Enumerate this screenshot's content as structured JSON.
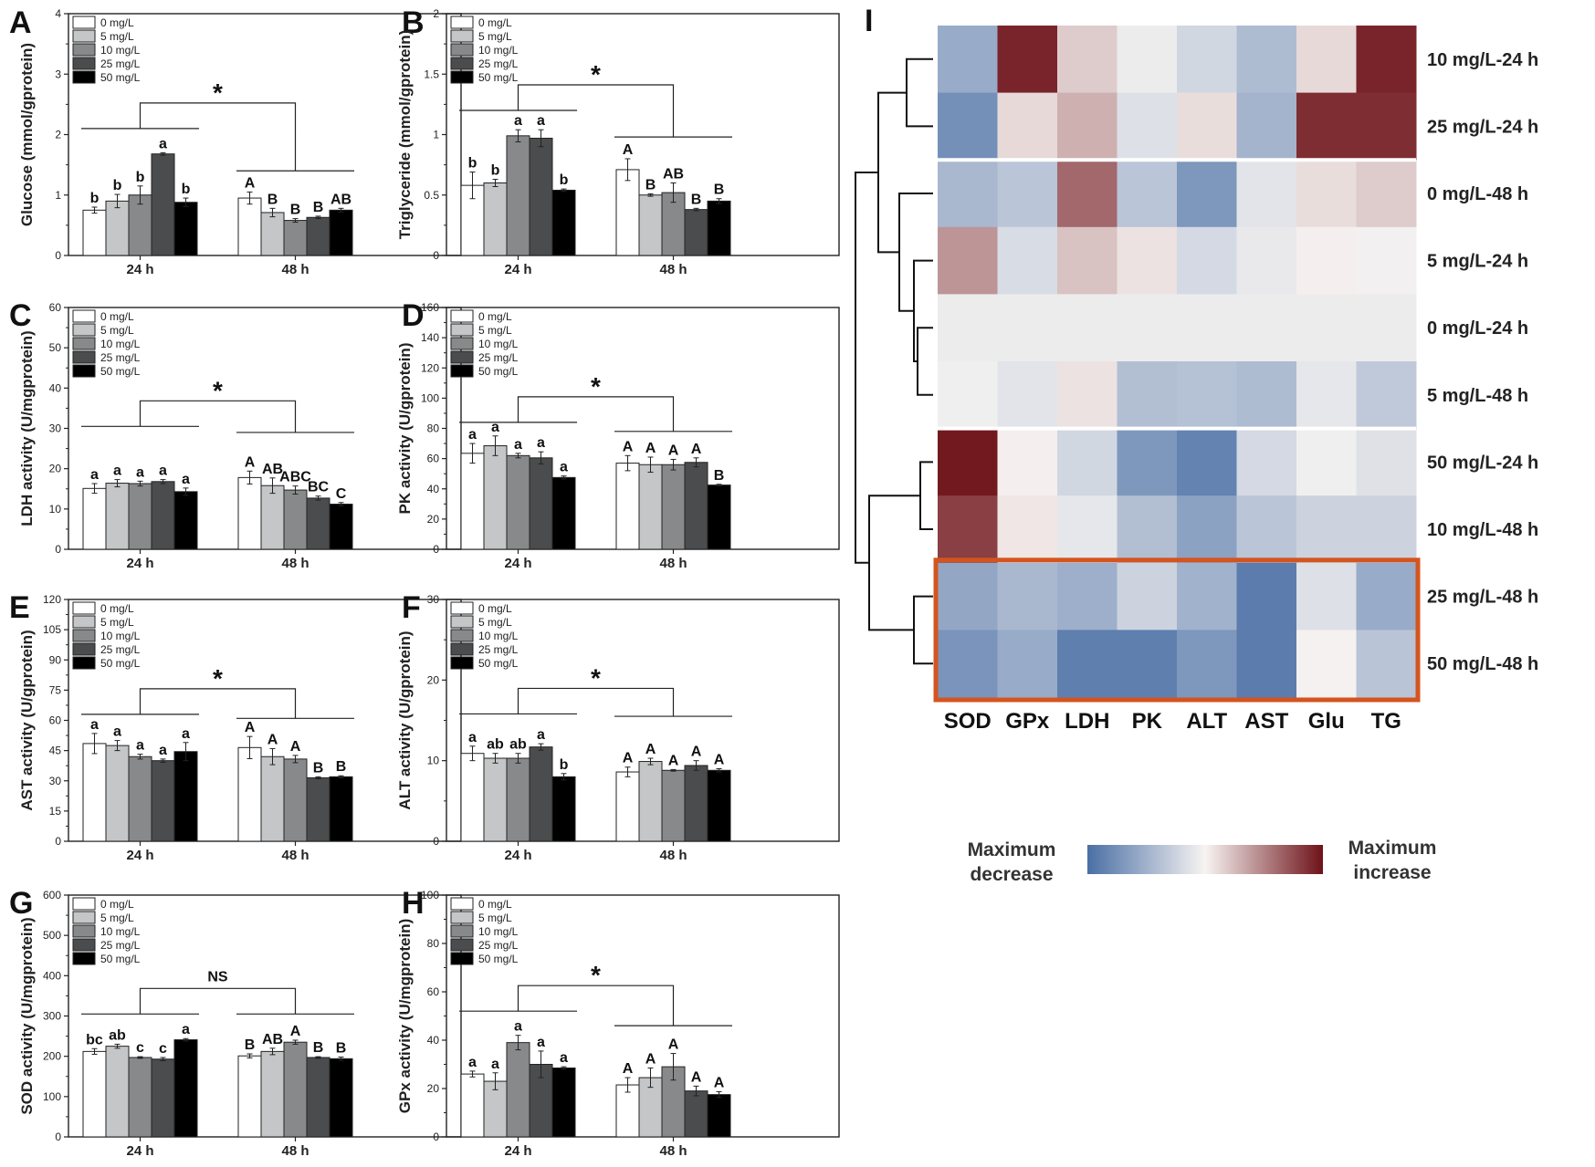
{
  "figure": {
    "legend_scale": {
      "low_label_line1": "Maximum",
      "low_label_line2": "decrease",
      "high_label_line1": "Maximum",
      "high_label_line2": "increase"
    },
    "colors": {
      "low": "#4a6fa5",
      "mid": "#f7f4f2",
      "high": "#6e1219",
      "highlight_box": "#d4541f"
    }
  },
  "chart_data": [
    {
      "panel": "A",
      "type": "bar",
      "ylabel": "Glucose (mmol/gprotein)",
      "ylim": [
        0,
        4
      ],
      "yticks": [
        0,
        1,
        2,
        3,
        4
      ],
      "groups": [
        "24 h",
        "48 h"
      ],
      "series": [
        {
          "name": "0 mg/L",
          "color": "#ffffff",
          "values": [
            0.75,
            0.95
          ],
          "errors": [
            0.05,
            0.1
          ],
          "letters": [
            "b",
            "A"
          ]
        },
        {
          "name": "5 mg/L",
          "color": "#c4c6c7",
          "values": [
            0.9,
            0.71
          ],
          "errors": [
            0.11,
            0.07
          ],
          "letters": [
            "b",
            "B"
          ]
        },
        {
          "name": "10 mg/L",
          "color": "#88898a",
          "values": [
            1.0,
            0.58
          ],
          "errors": [
            0.15,
            0.03
          ],
          "letters": [
            "b",
            "B"
          ]
        },
        {
          "name": "25 mg/L",
          "color": "#4b4c4d",
          "values": [
            1.68,
            0.63
          ],
          "errors": [
            0.02,
            0.02
          ],
          "letters": [
            "a",
            "B"
          ]
        },
        {
          "name": "50 mg/L",
          "color": "#000000",
          "values": [
            0.88,
            0.75
          ],
          "errors": [
            0.07,
            0.03
          ],
          "letters": [
            "b",
            "AB"
          ]
        }
      ],
      "significance": "*",
      "bracket_levels": [
        2.1,
        1.4
      ]
    },
    {
      "panel": "B",
      "type": "bar",
      "ylabel": "Triglyceride (mmol/gprotein)",
      "ylim": [
        0,
        2.0
      ],
      "yticks": [
        0.0,
        0.5,
        1.0,
        1.5,
        2.0
      ],
      "groups": [
        "24 h",
        "48 h"
      ],
      "series": [
        {
          "name": "0 mg/L",
          "color": "#ffffff",
          "values": [
            0.58,
            0.71
          ],
          "errors": [
            0.11,
            0.09
          ],
          "letters": [
            "b",
            "A"
          ]
        },
        {
          "name": "5 mg/L",
          "color": "#c4c6c7",
          "values": [
            0.6,
            0.5
          ],
          "errors": [
            0.03,
            0.01
          ],
          "letters": [
            "b",
            "B"
          ]
        },
        {
          "name": "10 mg/L",
          "color": "#88898a",
          "values": [
            0.99,
            0.52
          ],
          "errors": [
            0.05,
            0.08
          ],
          "letters": [
            "a",
            "AB"
          ]
        },
        {
          "name": "25 mg/L",
          "color": "#4b4c4d",
          "values": [
            0.97,
            0.38
          ],
          "errors": [
            0.07,
            0.01
          ],
          "letters": [
            "a",
            "B"
          ]
        },
        {
          "name": "50 mg/L",
          "color": "#000000",
          "values": [
            0.54,
            0.45
          ],
          "errors": [
            0.01,
            0.02
          ],
          "letters": [
            "b",
            "B"
          ]
        }
      ],
      "significance": "*",
      "bracket_levels": [
        1.2,
        0.98
      ]
    },
    {
      "panel": "C",
      "type": "bar",
      "ylabel": "LDH activity (U/mgprotein)",
      "ylim": [
        0,
        60
      ],
      "yticks": [
        0,
        10,
        20,
        30,
        40,
        50,
        60
      ],
      "groups": [
        "24 h",
        "48 h"
      ],
      "series": [
        {
          "name": "0 mg/L",
          "color": "#ffffff",
          "values": [
            15.1,
            17.8
          ],
          "errors": [
            1.2,
            1.6
          ],
          "letters": [
            "a",
            "A"
          ]
        },
        {
          "name": "5 mg/L",
          "color": "#c4c6c7",
          "values": [
            16.4,
            15.8
          ],
          "errors": [
            0.9,
            1.9
          ],
          "letters": [
            "a",
            "AB"
          ]
        },
        {
          "name": "10 mg/L",
          "color": "#88898a",
          "values": [
            16.3,
            14.7
          ],
          "errors": [
            0.6,
            1.0
          ],
          "letters": [
            "a",
            "ABC"
          ]
        },
        {
          "name": "25 mg/L",
          "color": "#4b4c4d",
          "values": [
            16.8,
            12.7
          ],
          "errors": [
            0.5,
            0.5
          ],
          "letters": [
            "a",
            "BC"
          ]
        },
        {
          "name": "50 mg/L",
          "color": "#000000",
          "values": [
            14.3,
            11.2
          ],
          "errors": [
            0.9,
            0.4
          ],
          "letters": [
            "a",
            "C"
          ]
        }
      ],
      "significance": "*",
      "bracket_levels": [
        30.5,
        29.0
      ]
    },
    {
      "panel": "D",
      "type": "bar",
      "ylabel": "PK activity (U/gprotein)",
      "ylim": [
        0,
        160
      ],
      "yticks": [
        0,
        20,
        40,
        60,
        80,
        100,
        120,
        140,
        160
      ],
      "groups": [
        "24 h",
        "48 h"
      ],
      "series": [
        {
          "name": "0 mg/L",
          "color": "#ffffff",
          "values": [
            63.5,
            57.0
          ],
          "errors": [
            6.5,
            5.0
          ],
          "letters": [
            "a",
            "A"
          ]
        },
        {
          "name": "5 mg/L",
          "color": "#c4c6c7",
          "values": [
            68.5,
            56.0
          ],
          "errors": [
            6.5,
            5.0
          ],
          "letters": [
            "a",
            "A"
          ]
        },
        {
          "name": "10 mg/L",
          "color": "#88898a",
          "values": [
            62.0,
            56.0
          ],
          "errors": [
            1.5,
            3.5
          ],
          "letters": [
            "a",
            "A"
          ]
        },
        {
          "name": "25 mg/L",
          "color": "#4b4c4d",
          "values": [
            60.5,
            57.5
          ],
          "errors": [
            4.0,
            3.0
          ],
          "letters": [
            "a",
            "A"
          ]
        },
        {
          "name": "50 mg/L",
          "color": "#000000",
          "values": [
            47.5,
            42.5
          ],
          "errors": [
            1.0,
            0.5
          ],
          "letters": [
            "a",
            "B"
          ]
        }
      ],
      "significance": "*",
      "bracket_levels": [
        84,
        78
      ]
    },
    {
      "panel": "E",
      "type": "bar",
      "ylabel": "AST activity (U/gprotein)",
      "ylim": [
        0,
        120
      ],
      "yticks": [
        0,
        15,
        30,
        45,
        60,
        75,
        90,
        105,
        120
      ],
      "groups": [
        "24 h",
        "48 h"
      ],
      "series": [
        {
          "name": "0 mg/L",
          "color": "#ffffff",
          "values": [
            48.5,
            46.5
          ],
          "errors": [
            5.0,
            5.5
          ],
          "letters": [
            "a",
            "A"
          ]
        },
        {
          "name": "5 mg/L",
          "color": "#c4c6c7",
          "values": [
            47.5,
            42.0
          ],
          "errors": [
            2.5,
            4.0
          ],
          "letters": [
            "a",
            "A"
          ]
        },
        {
          "name": "10 mg/L",
          "color": "#88898a",
          "values": [
            42.0,
            40.8
          ],
          "errors": [
            1.2,
            1.8
          ],
          "letters": [
            "a",
            "A"
          ]
        },
        {
          "name": "25 mg/L",
          "color": "#4b4c4d",
          "values": [
            40.0,
            31.5
          ],
          "errors": [
            0.8,
            0.5
          ],
          "letters": [
            "a",
            "B"
          ]
        },
        {
          "name": "50 mg/L",
          "color": "#000000",
          "values": [
            44.5,
            32.0
          ],
          "errors": [
            4.5,
            0.5
          ],
          "letters": [
            "a",
            "B"
          ]
        }
      ],
      "significance": "*",
      "bracket_levels": [
        63,
        61
      ]
    },
    {
      "panel": "F",
      "type": "bar",
      "ylabel": "ALT activity (U/gprotein)",
      "ylim": [
        0,
        30
      ],
      "yticks": [
        0,
        10,
        20,
        30
      ],
      "groups": [
        "24 h",
        "48 h"
      ],
      "series": [
        {
          "name": "0 mg/L",
          "color": "#ffffff",
          "values": [
            10.9,
            8.6
          ],
          "errors": [
            0.9,
            0.6
          ],
          "letters": [
            "a",
            "A"
          ]
        },
        {
          "name": "5 mg/L",
          "color": "#c4c6c7",
          "values": [
            10.3,
            9.9
          ],
          "errors": [
            0.6,
            0.4
          ],
          "letters": [
            "ab",
            "A"
          ]
        },
        {
          "name": "10 mg/L",
          "color": "#88898a",
          "values": [
            10.3,
            8.8
          ],
          "errors": [
            0.6,
            0.1
          ],
          "letters": [
            "ab",
            "A"
          ]
        },
        {
          "name": "25 mg/L",
          "color": "#4b4c4d",
          "values": [
            11.7,
            9.4
          ],
          "errors": [
            0.4,
            0.6
          ],
          "letters": [
            "a",
            "A"
          ]
        },
        {
          "name": "50 mg/L",
          "color": "#000000",
          "values": [
            8.0,
            8.8
          ],
          "errors": [
            0.4,
            0.2
          ],
          "letters": [
            "b",
            "A"
          ]
        }
      ],
      "significance": "*",
      "bracket_levels": [
        15.8,
        15.5
      ]
    },
    {
      "panel": "G",
      "type": "bar",
      "ylabel": "SOD activity (U/mgprotein)",
      "ylim": [
        0,
        600
      ],
      "yticks": [
        0,
        100,
        200,
        300,
        400,
        500,
        600
      ],
      "groups": [
        "24 h",
        "48 h"
      ],
      "series": [
        {
          "name": "0 mg/L",
          "color": "#ffffff",
          "values": [
            212,
            201
          ],
          "errors": [
            7,
            5
          ],
          "letters": [
            "bc",
            "B"
          ]
        },
        {
          "name": "5 mg/L",
          "color": "#c4c6c7",
          "values": [
            225,
            212
          ],
          "errors": [
            5,
            8
          ],
          "letters": [
            "ab",
            "AB"
          ]
        },
        {
          "name": "10 mg/L",
          "color": "#88898a",
          "values": [
            197,
            235
          ],
          "errors": [
            2,
            5
          ],
          "letters": [
            "c",
            "A"
          ]
        },
        {
          "name": "25 mg/L",
          "color": "#4b4c4d",
          "values": [
            193,
            197
          ],
          "errors": [
            4,
            2
          ],
          "letters": [
            "c",
            "B"
          ]
        },
        {
          "name": "50 mg/L",
          "color": "#000000",
          "values": [
            241,
            194
          ],
          "errors": [
            3,
            4
          ],
          "letters": [
            "a",
            "B"
          ]
        }
      ],
      "significance": "NS",
      "bracket_levels": [
        305,
        305
      ]
    },
    {
      "panel": "H",
      "type": "bar",
      "ylabel": "GPx activity (U/mgprotein)",
      "ylim": [
        0,
        100
      ],
      "yticks": [
        0,
        20,
        40,
        60,
        80,
        100
      ],
      "groups": [
        "24 h",
        "48 h"
      ],
      "series": [
        {
          "name": "0 mg/L",
          "color": "#ffffff",
          "values": [
            26.0,
            21.5
          ],
          "errors": [
            1.2,
            3.0
          ],
          "letters": [
            "a",
            "A"
          ]
        },
        {
          "name": "5 mg/L",
          "color": "#c4c6c7",
          "values": [
            23.0,
            24.5
          ],
          "errors": [
            3.5,
            4.0
          ],
          "letters": [
            "a",
            "A"
          ]
        },
        {
          "name": "10 mg/L",
          "color": "#88898a",
          "values": [
            39.0,
            29.0
          ],
          "errors": [
            3.0,
            5.5
          ],
          "letters": [
            "a",
            "A"
          ]
        },
        {
          "name": "25 mg/L",
          "color": "#4b4c4d",
          "values": [
            30.0,
            19.0
          ],
          "errors": [
            5.5,
            2.0
          ],
          "letters": [
            "a",
            "A"
          ]
        },
        {
          "name": "50 mg/L",
          "color": "#000000",
          "values": [
            28.5,
            17.5
          ],
          "errors": [
            0.5,
            1.2
          ],
          "letters": [
            "a",
            "A"
          ]
        }
      ],
      "significance": "*",
      "bracket_levels": [
        52,
        46
      ]
    },
    {
      "panel": "I",
      "type": "heatmap",
      "columns": [
        "SOD",
        "GPx",
        "LDH",
        "PK",
        "ALT",
        "AST",
        "Glu",
        "TG"
      ],
      "rows": [
        "10 mg/L-24 h",
        "25 mg/L-24 h",
        "0 mg/L-48 h",
        "5 mg/L-24 h",
        "0 mg/L-24 h",
        "5 mg/L-48 h",
        "50 mg/L-24 h",
        "10 mg/L-48 h",
        "25 mg/L-48 h",
        "50 mg/L-48 h"
      ],
      "values": [
        [
          -0.55,
          0.92,
          0.18,
          -0.06,
          -0.22,
          -0.42,
          0.12,
          0.92
        ],
        [
          -0.75,
          0.12,
          0.3,
          -0.15,
          0.1,
          -0.48,
          0.88,
          0.88
        ],
        [
          -0.45,
          -0.35,
          0.62,
          -0.35,
          -0.7,
          -0.12,
          0.1,
          0.18
        ],
        [
          0.42,
          -0.18,
          0.22,
          0.08,
          -0.2,
          -0.08,
          0.02,
          -0.03
        ],
        [
          -0.06,
          -0.06,
          -0.06,
          -0.06,
          -0.06,
          -0.06,
          -0.06,
          -0.06
        ],
        [
          -0.04,
          -0.12,
          0.08,
          -0.4,
          -0.38,
          -0.42,
          -0.1,
          -0.32
        ],
        [
          0.97,
          0.02,
          -0.22,
          -0.7,
          -0.85,
          -0.2,
          -0.04,
          -0.14
        ],
        [
          0.8,
          0.06,
          -0.1,
          -0.4,
          -0.62,
          -0.35,
          -0.25,
          -0.25
        ],
        [
          -0.58,
          -0.45,
          -0.52,
          -0.25,
          -0.5,
          -0.9,
          -0.15,
          -0.55
        ],
        [
          -0.72,
          -0.55,
          -0.88,
          -0.88,
          -0.7,
          -0.9,
          -0.02,
          -0.36
        ]
      ],
      "highlighted_rows": [
        "25 mg/L-48 h",
        "50 mg/L-48 h"
      ]
    }
  ]
}
